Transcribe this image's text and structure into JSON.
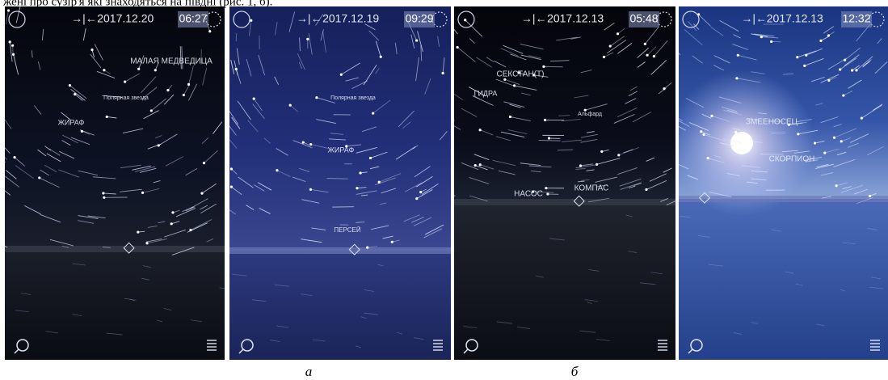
{
  "header_text": "жені про сузір'я які знаходяться на півдні (рис. 1, б).",
  "panels": [
    {
      "date": "2017.12.20",
      "time": "06:27",
      "labels": [
        "МАЛАЯ МЕДВЕДИЦА",
        "Полярная звезда",
        "ЖИРАФ"
      ]
    },
    {
      "date": "2017.12.19",
      "time": "09:29",
      "labels": [
        "Полярная звезда",
        "ЖИРАФ",
        "ПЕРСЕЙ"
      ]
    },
    {
      "date": "2017.12.13",
      "time": "05:48",
      "labels": [
        "СЕКСТАН(Т)",
        "ГИДРА",
        "Альфард",
        "НАСОС",
        "КОМПАС"
      ]
    },
    {
      "date": "2017.12.13",
      "time": "12:32",
      "labels": [
        "ЗМЕЕНОСЕЦ",
        "СКОРПИОН"
      ]
    }
  ],
  "captions": [
    "а",
    "б"
  ]
}
